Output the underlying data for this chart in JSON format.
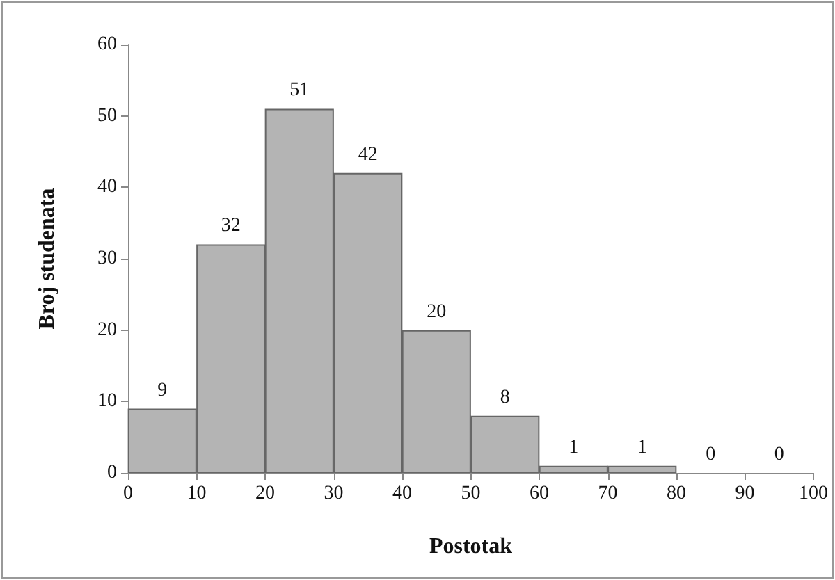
{
  "chart_data": {
    "type": "histogram",
    "xlabel": "Postotak",
    "ylabel": "Broj studenata",
    "bins": [
      0,
      10,
      20,
      30,
      40,
      50,
      60,
      70,
      80,
      90,
      100
    ],
    "values": [
      9,
      32,
      51,
      42,
      20,
      8,
      1,
      1,
      0,
      0
    ],
    "color": "#b4b4b4",
    "xlim": [
      0,
      100
    ],
    "xticks": [
      0,
      10,
      20,
      30,
      40,
      50,
      60,
      70,
      80,
      90,
      100
    ],
    "ylim": [
      0,
      60
    ],
    "yticks": [
      0,
      10,
      20,
      30,
      40,
      50,
      60
    ],
    "data_labels": true
  }
}
